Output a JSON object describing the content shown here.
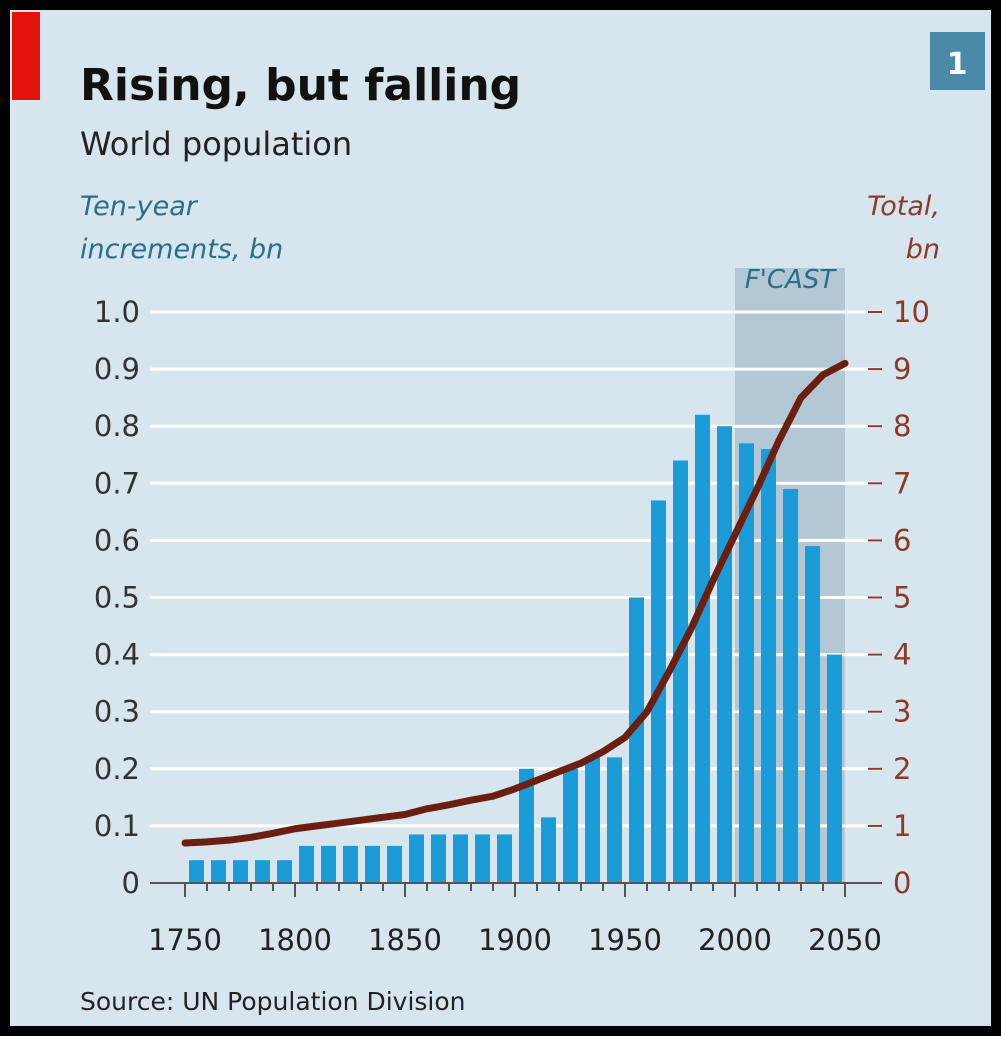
{
  "chart_data": {
    "type": "bar",
    "title": "Rising, but falling",
    "subtitle": "World population",
    "badge": "1",
    "ylabel": [
      "Ten-year",
      "increments, bn"
    ],
    "y2label": [
      "Total,",
      "bn"
    ],
    "source": "Source: UN Population Division",
    "forecast": {
      "label": "F'CAST",
      "xrange": [
        2000,
        2050
      ]
    },
    "xlim": [
      1750,
      2050
    ],
    "xticks": [
      1750,
      1800,
      1850,
      1900,
      1950,
      2000,
      2050
    ],
    "ylim": [
      0,
      1
    ],
    "yticks": [
      0,
      0.1,
      0.2,
      0.3,
      0.4,
      0.5,
      0.6,
      0.7,
      0.8,
      0.9,
      {
        "value": 1,
        "label": "1.0"
      }
    ],
    "y2lim": [
      0,
      10
    ],
    "y2ticks": [
      0,
      1,
      2,
      3,
      4,
      5,
      6,
      7,
      8,
      9,
      10
    ],
    "grid": true,
    "series": [
      {
        "type": "bar",
        "color": "#1b9bd7",
        "x": [
          1750,
          1760,
          1770,
          1780,
          1790,
          1800,
          1810,
          1820,
          1830,
          1840,
          1850,
          1860,
          1870,
          1880,
          1890,
          1900,
          1910,
          1920,
          1930,
          1940,
          1950,
          1960,
          1970,
          1980,
          1990,
          2000,
          2010,
          2020,
          2030,
          2040
        ],
        "values": [
          0.04,
          0.04,
          0.04,
          0.04,
          0.04,
          0.065,
          0.065,
          0.065,
          0.065,
          0.065,
          0.085,
          0.085,
          0.085,
          0.085,
          0.085,
          0.2,
          0.115,
          0.2,
          0.22,
          0.22,
          0.5,
          0.67,
          0.74,
          0.82,
          0.8,
          0.77,
          0.76,
          0.69,
          0.59,
          0.4
        ]
      },
      {
        "type": "line",
        "axis": "y2",
        "color": "#6b1f10",
        "x": [
          1750,
          1760,
          1770,
          1780,
          1790,
          1800,
          1810,
          1820,
          1830,
          1840,
          1850,
          1860,
          1870,
          1880,
          1890,
          1900,
          1910,
          1920,
          1930,
          1940,
          1950,
          1960,
          1970,
          1980,
          1990,
          2000,
          2010,
          2020,
          2030,
          2040,
          2050
        ],
        "values": [
          0.7,
          0.72,
          0.75,
          0.8,
          0.87,
          0.95,
          1.0,
          1.05,
          1.1,
          1.15,
          1.2,
          1.3,
          1.37,
          1.45,
          1.52,
          1.65,
          1.8,
          1.95,
          2.1,
          2.3,
          2.55,
          3.0,
          3.7,
          4.45,
          5.3,
          6.1,
          6.9,
          7.75,
          8.5,
          8.9,
          9.1
        ]
      }
    ]
  }
}
